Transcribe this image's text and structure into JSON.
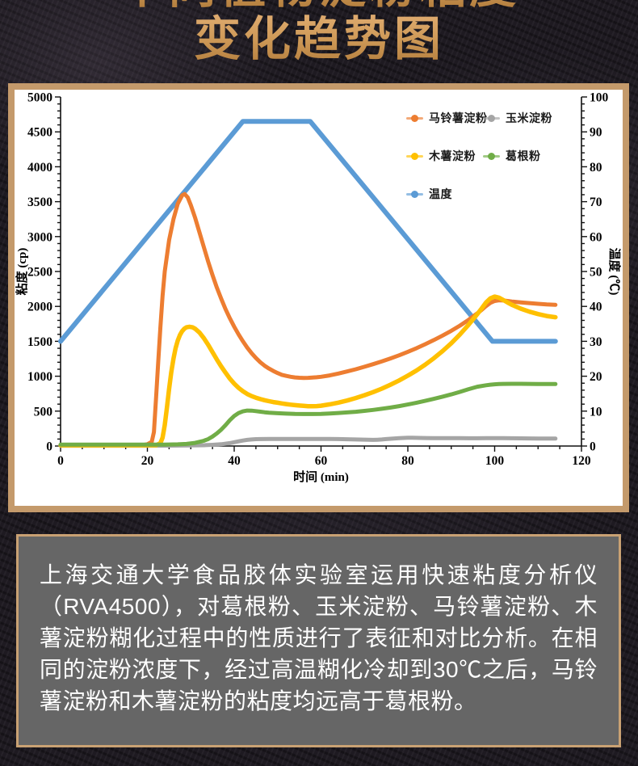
{
  "title": {
    "line1": "不同植物淀粉粘度",
    "line2": "变化趋势图"
  },
  "colors": {
    "frame_border": "#c49a6b",
    "textbox_border": "#c9a173",
    "textbox_background": "#666666",
    "chart_background": "#ffffff",
    "title_gold_light": "#e2ae74",
    "title_gold_dark": "#b07a3a",
    "page_background": "#1e1a21"
  },
  "chart_data": {
    "type": "line",
    "grid": false,
    "legend_position": "top-right",
    "x_axis": {
      "label": "时间 (min)",
      "min": 0,
      "max": 120,
      "major_tick": 20,
      "minor_tick": 5,
      "tick_labels": [
        0,
        20,
        40,
        60,
        80,
        100,
        120
      ]
    },
    "y_left_axis": {
      "label": "粘度 (cp)",
      "min": 0,
      "max": 5000,
      "major_tick": 500,
      "minor_tick": 100,
      "tick_labels": [
        0,
        500,
        1000,
        1500,
        2000,
        2500,
        3000,
        3500,
        4000,
        4500,
        5000
      ]
    },
    "y_right_axis": {
      "label": "温度 (℃)",
      "min": 0,
      "max": 100,
      "major_tick": 10,
      "minor_tick": 2,
      "tick_labels": [
        0,
        10,
        20,
        30,
        40,
        50,
        60,
        70,
        80,
        90,
        100
      ]
    },
    "draw_order": [
      4,
      1,
      0,
      2,
      3
    ],
    "series": [
      {
        "id": "potato-starch",
        "name": "马铃薯淀粉",
        "color": "#ED7D31",
        "axis": "left",
        "line_width": 5,
        "points": [
          [
            0,
            15
          ],
          [
            4,
            15
          ],
          [
            8,
            15
          ],
          [
            12,
            15
          ],
          [
            16,
            15
          ],
          [
            19,
            15
          ],
          [
            20,
            25
          ],
          [
            21,
            60
          ],
          [
            21.5,
            200
          ],
          [
            22,
            700
          ],
          [
            22.5,
            1200
          ],
          [
            23,
            1700
          ],
          [
            23.5,
            2150
          ],
          [
            24,
            2500
          ],
          [
            25,
            2950
          ],
          [
            26,
            3250
          ],
          [
            27,
            3470
          ],
          [
            28,
            3590
          ],
          [
            28.6,
            3610
          ],
          [
            29.3,
            3560
          ],
          [
            30,
            3450
          ],
          [
            31,
            3270
          ],
          [
            32,
            3060
          ],
          [
            33,
            2850
          ],
          [
            34,
            2640
          ],
          [
            35,
            2450
          ],
          [
            36,
            2270
          ],
          [
            37,
            2110
          ],
          [
            38,
            1960
          ],
          [
            39,
            1830
          ],
          [
            40,
            1710
          ],
          [
            41,
            1600
          ],
          [
            42,
            1500
          ],
          [
            43,
            1410
          ],
          [
            44,
            1330
          ],
          [
            45,
            1260
          ],
          [
            46,
            1200
          ],
          [
            47,
            1150
          ],
          [
            48,
            1110
          ],
          [
            49,
            1075
          ],
          [
            50,
            1045
          ],
          [
            51,
            1020
          ],
          [
            52,
            1005
          ],
          [
            53,
            992
          ],
          [
            54,
            983
          ],
          [
            55,
            978
          ],
          [
            56,
            976
          ],
          [
            57,
            977
          ],
          [
            58,
            980
          ],
          [
            59,
            985
          ],
          [
            60,
            992
          ],
          [
            62,
            1012
          ],
          [
            64,
            1038
          ],
          [
            66,
            1068
          ],
          [
            68,
            1100
          ],
          [
            70,
            1135
          ],
          [
            72,
            1172
          ],
          [
            74,
            1212
          ],
          [
            76,
            1255
          ],
          [
            78,
            1300
          ],
          [
            80,
            1350
          ],
          [
            82,
            1402
          ],
          [
            84,
            1458
          ],
          [
            86,
            1518
          ],
          [
            88,
            1582
          ],
          [
            90,
            1650
          ],
          [
            92,
            1725
          ],
          [
            94,
            1808
          ],
          [
            96,
            1900
          ],
          [
            97,
            1950
          ],
          [
            98,
            2005
          ],
          [
            99,
            2050
          ],
          [
            100,
            2078
          ],
          [
            101,
            2088
          ],
          [
            102,
            2085
          ],
          [
            103,
            2078
          ],
          [
            104,
            2070
          ],
          [
            106,
            2058
          ],
          [
            108,
            2047
          ],
          [
            110,
            2037
          ],
          [
            112,
            2028
          ],
          [
            114,
            2022
          ]
        ]
      },
      {
        "id": "corn-starch",
        "name": "玉米淀粉",
        "color": "#A5A5A5",
        "axis": "left",
        "line_width": 5,
        "points": [
          [
            0,
            5
          ],
          [
            5,
            5
          ],
          [
            10,
            5
          ],
          [
            15,
            5
          ],
          [
            20,
            5
          ],
          [
            25,
            6
          ],
          [
            30,
            8
          ],
          [
            33,
            12
          ],
          [
            35,
            17
          ],
          [
            37,
            26
          ],
          [
            38,
            33
          ],
          [
            39,
            42
          ],
          [
            40,
            54
          ],
          [
            41,
            67
          ],
          [
            42,
            79
          ],
          [
            43,
            88
          ],
          [
            44,
            94
          ],
          [
            45,
            98
          ],
          [
            46,
            100
          ],
          [
            48,
            101
          ],
          [
            50,
            101
          ],
          [
            52,
            101
          ],
          [
            54,
            101
          ],
          [
            56,
            102
          ],
          [
            58,
            102
          ],
          [
            60,
            102
          ],
          [
            62,
            101
          ],
          [
            64,
            99
          ],
          [
            66,
            97
          ],
          [
            68,
            94
          ],
          [
            70,
            91
          ],
          [
            71,
            89
          ],
          [
            72,
            88
          ],
          [
            73,
            90
          ],
          [
            74,
            94
          ],
          [
            75,
            99
          ],
          [
            76,
            104
          ],
          [
            77,
            109
          ],
          [
            78,
            113
          ],
          [
            79,
            116
          ],
          [
            80,
            118
          ],
          [
            81,
            118
          ],
          [
            82,
            117
          ],
          [
            84,
            115
          ],
          [
            86,
            114
          ],
          [
            88,
            113
          ],
          [
            90,
            112
          ],
          [
            92,
            112
          ],
          [
            94,
            111
          ],
          [
            96,
            111
          ],
          [
            98,
            112
          ],
          [
            100,
            113
          ],
          [
            102,
            112
          ],
          [
            104,
            111
          ],
          [
            106,
            110
          ],
          [
            108,
            109
          ],
          [
            110,
            108
          ],
          [
            112,
            107
          ],
          [
            114,
            107
          ]
        ]
      },
      {
        "id": "tapioca-starch",
        "name": "木薯淀粉",
        "color": "#FFC000",
        "axis": "left",
        "line_width": 5.5,
        "points": [
          [
            0,
            10
          ],
          [
            5,
            10
          ],
          [
            10,
            10
          ],
          [
            15,
            10
          ],
          [
            20,
            10
          ],
          [
            22,
            12
          ],
          [
            23,
            40
          ],
          [
            23.5,
            120
          ],
          [
            24,
            300
          ],
          [
            24.5,
            550
          ],
          [
            25,
            820
          ],
          [
            25.5,
            1060
          ],
          [
            26,
            1250
          ],
          [
            26.5,
            1400
          ],
          [
            27,
            1510
          ],
          [
            27.5,
            1590
          ],
          [
            28,
            1645
          ],
          [
            28.5,
            1680
          ],
          [
            29,
            1700
          ],
          [
            29.7,
            1708
          ],
          [
            30.4,
            1700
          ],
          [
            31,
            1680
          ],
          [
            32,
            1625
          ],
          [
            33,
            1545
          ],
          [
            34,
            1450
          ],
          [
            35,
            1345
          ],
          [
            36,
            1240
          ],
          [
            37,
            1140
          ],
          [
            38,
            1050
          ],
          [
            39,
            965
          ],
          [
            40,
            893
          ],
          [
            41,
            833
          ],
          [
            42,
            785
          ],
          [
            43,
            745
          ],
          [
            44,
            715
          ],
          [
            45,
            692
          ],
          [
            46,
            672
          ],
          [
            47,
            656
          ],
          [
            48,
            642
          ],
          [
            49,
            630
          ],
          [
            50,
            620
          ],
          [
            51,
            610
          ],
          [
            52,
            601
          ],
          [
            53,
            593
          ],
          [
            54,
            586
          ],
          [
            55,
            580
          ],
          [
            56,
            575
          ],
          [
            57,
            571
          ],
          [
            58,
            570
          ],
          [
            59,
            572
          ],
          [
            60,
            578
          ],
          [
            62,
            597
          ],
          [
            64,
            622
          ],
          [
            66,
            652
          ],
          [
            68,
            688
          ],
          [
            70,
            728
          ],
          [
            72,
            772
          ],
          [
            74,
            822
          ],
          [
            76,
            878
          ],
          [
            78,
            940
          ],
          [
            80,
            1008
          ],
          [
            82,
            1082
          ],
          [
            84,
            1165
          ],
          [
            86,
            1258
          ],
          [
            88,
            1360
          ],
          [
            90,
            1472
          ],
          [
            92,
            1598
          ],
          [
            94,
            1738
          ],
          [
            96,
            1890
          ],
          [
            97,
            1970
          ],
          [
            98,
            2055
          ],
          [
            99,
            2115
          ],
          [
            100,
            2140
          ],
          [
            101,
            2125
          ],
          [
            102,
            2090
          ],
          [
            103,
            2055
          ],
          [
            104,
            2022
          ],
          [
            106,
            1968
          ],
          [
            108,
            1925
          ],
          [
            110,
            1890
          ],
          [
            112,
            1862
          ],
          [
            114,
            1845
          ]
        ]
      },
      {
        "id": "kudzu-powder",
        "name": "葛根粉",
        "color": "#70AD47",
        "axis": "left",
        "line_width": 5,
        "points": [
          [
            0,
            20
          ],
          [
            5,
            20
          ],
          [
            10,
            20
          ],
          [
            15,
            20
          ],
          [
            20,
            20
          ],
          [
            24,
            21
          ],
          [
            27,
            24
          ],
          [
            29,
            30
          ],
          [
            31,
            45
          ],
          [
            33,
            75
          ],
          [
            34,
            100
          ],
          [
            35,
            135
          ],
          [
            36,
            180
          ],
          [
            37,
            235
          ],
          [
            38,
            300
          ],
          [
            39,
            370
          ],
          [
            40,
            430
          ],
          [
            41,
            472
          ],
          [
            42,
            497
          ],
          [
            43,
            508
          ],
          [
            44,
            507
          ],
          [
            45,
            500
          ],
          [
            46,
            492
          ],
          [
            47,
            484
          ],
          [
            48,
            478
          ],
          [
            50,
            470
          ],
          [
            52,
            464
          ],
          [
            54,
            460
          ],
          [
            56,
            458
          ],
          [
            58,
            458
          ],
          [
            60,
            461
          ],
          [
            62,
            466
          ],
          [
            64,
            473
          ],
          [
            66,
            481
          ],
          [
            68,
            491
          ],
          [
            70,
            503
          ],
          [
            72,
            517
          ],
          [
            74,
            533
          ],
          [
            76,
            551
          ],
          [
            78,
            572
          ],
          [
            80,
            595
          ],
          [
            82,
            620
          ],
          [
            84,
            647
          ],
          [
            86,
            676
          ],
          [
            88,
            707
          ],
          [
            90,
            740
          ],
          [
            92,
            776
          ],
          [
            94,
            815
          ],
          [
            96,
            850
          ],
          [
            98,
            870
          ],
          [
            99,
            878
          ],
          [
            100,
            884
          ],
          [
            101,
            888
          ],
          [
            102,
            890
          ],
          [
            104,
            891
          ],
          [
            106,
            891
          ],
          [
            108,
            890
          ],
          [
            110,
            889
          ],
          [
            112,
            888
          ],
          [
            114,
            888
          ]
        ]
      },
      {
        "id": "temperature",
        "name": "温度",
        "color": "#5B9BD5",
        "axis": "right",
        "line_width": 6,
        "points": [
          [
            0,
            30
          ],
          [
            42,
            93
          ],
          [
            57.5,
            93
          ],
          [
            99.5,
            30
          ],
          [
            114,
            30
          ]
        ]
      }
    ]
  },
  "description": {
    "text": "上海交通大学食品胶体实验室运用快速粘度分析仪（RVA4500），对葛根粉、玉米淀粉、马铃薯淀粉、木薯淀粉糊化过程中的性质进行了表征和对比分析。在相同的淀粉浓度下，经过高温糊化冷却到30℃之后，马铃薯淀粉和木薯淀粉的粘度均远高于葛根粉。"
  }
}
